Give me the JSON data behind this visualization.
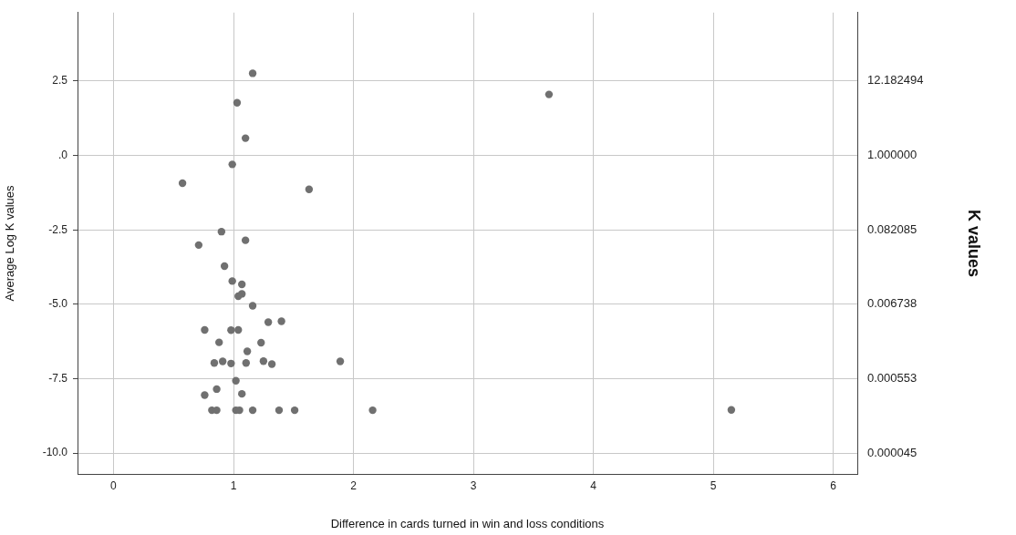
{
  "chart_data": {
    "type": "scatter",
    "xlabel": "Difference in cards turned in win and loss conditions",
    "ylabel": "Average Log K values",
    "y2label": "K values",
    "series": [
      {
        "color": "#707070",
        "x": [
          1.16,
          1.03,
          1.1,
          0.99,
          0.575,
          1.63,
          0.9,
          1.1,
          0.71,
          0.925,
          0.99,
          1.07,
          1.07,
          1.04,
          1.16,
          1.29,
          1.4,
          0.76,
          0.98,
          1.04,
          0.88,
          1.23,
          1.115,
          0.84,
          0.91,
          0.98,
          1.105,
          1.25,
          1.32,
          1.89,
          1.02,
          0.86,
          0.76,
          1.07,
          0.82,
          0.86,
          1.0,
          1.02,
          1.05,
          1.14,
          1.16,
          1.38,
          1.51,
          2.16,
          3.63,
          5.15
        ],
        "values": [
          2.76,
          1.77,
          0.58,
          -0.3,
          -0.93,
          -1.14,
          -2.56,
          -2.85,
          -3.01,
          -3.72,
          -4.22,
          -4.33,
          -4.65,
          -4.73,
          -5.05,
          -5.6,
          -5.57,
          -5.86,
          -5.87,
          -5.86,
          -6.28,
          -6.29,
          -6.58,
          -6.97,
          -6.92,
          -6.99,
          -6.97,
          -6.91,
          -7.01,
          -6.92,
          -7.57,
          -7.85,
          -8.05,
          -8.01,
          -8.56,
          -8.56,
          null,
          -8.56,
          -8.56,
          null,
          -8.56,
          -8.56,
          -8.56,
          -8.56,
          2.05,
          -8.55
        ]
      }
    ],
    "xlim": [
      -0.3,
      6.2
    ],
    "xticks": [
      0,
      1,
      2,
      3,
      4,
      5,
      6
    ],
    "ylim": [
      -10.7,
      4.8
    ],
    "yticks": [
      {
        "value": 2.5,
        "label": "2.5"
      },
      {
        "value": 0,
        "label": ".0"
      },
      {
        "value": -2.5,
        "label": "-2.5"
      },
      {
        "value": -5,
        "label": "-5.0"
      },
      {
        "value": -7.5,
        "label": "-7.5"
      },
      {
        "value": -10,
        "label": "-10.0"
      }
    ],
    "log": "y2",
    "y2lim": [
      2.25e-05,
      121.5
    ],
    "y2ticks": [
      {
        "value": 12.182494,
        "label": "12.182494"
      },
      {
        "value": 1,
        "label": "1.000000"
      },
      {
        "value": 0.082085,
        "label": "0.082085"
      },
      {
        "value": 0.006738,
        "label": "0.006738"
      },
      {
        "value": 0.000553,
        "label": "0.000553"
      },
      {
        "value": 4.5e-05,
        "label": "0.000045"
      }
    ],
    "grid": true,
    "marker": "circle",
    "legend": false
  }
}
